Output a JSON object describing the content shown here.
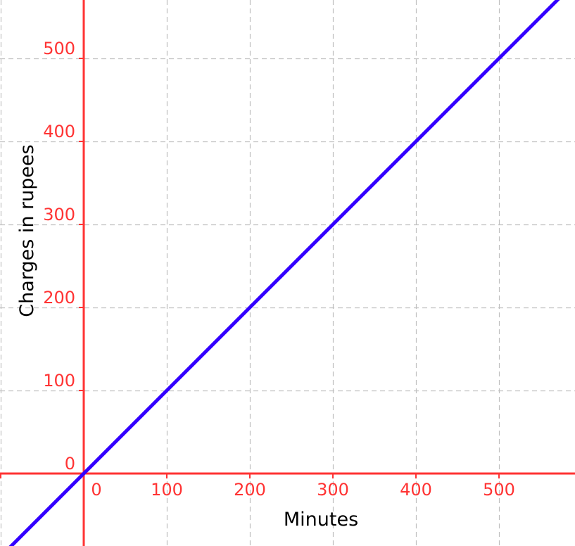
{
  "chart_data": {
    "type": "line",
    "title": "",
    "xlabel": "Minutes",
    "ylabel": "Charges in rupees",
    "xlim": [
      -100,
      590
    ],
    "ylim": [
      -87,
      570
    ],
    "x_ticks": [
      0,
      100,
      200,
      300,
      400,
      500
    ],
    "y_ticks": [
      0,
      100,
      200,
      300,
      400,
      500
    ],
    "x_tick_labels": [
      "0",
      "100",
      "200",
      "300",
      "400",
      "500"
    ],
    "y_tick_labels": [
      "0",
      "100",
      "200",
      "300",
      "400",
      "500"
    ],
    "grid": true,
    "series": [
      {
        "equation": "y = x",
        "x": [
          -100,
          590
        ],
        "y": [
          -100,
          590
        ],
        "color": "#3300ff"
      }
    ],
    "axis_color": "#ff3333",
    "grid_color": "#c0c0c0"
  }
}
